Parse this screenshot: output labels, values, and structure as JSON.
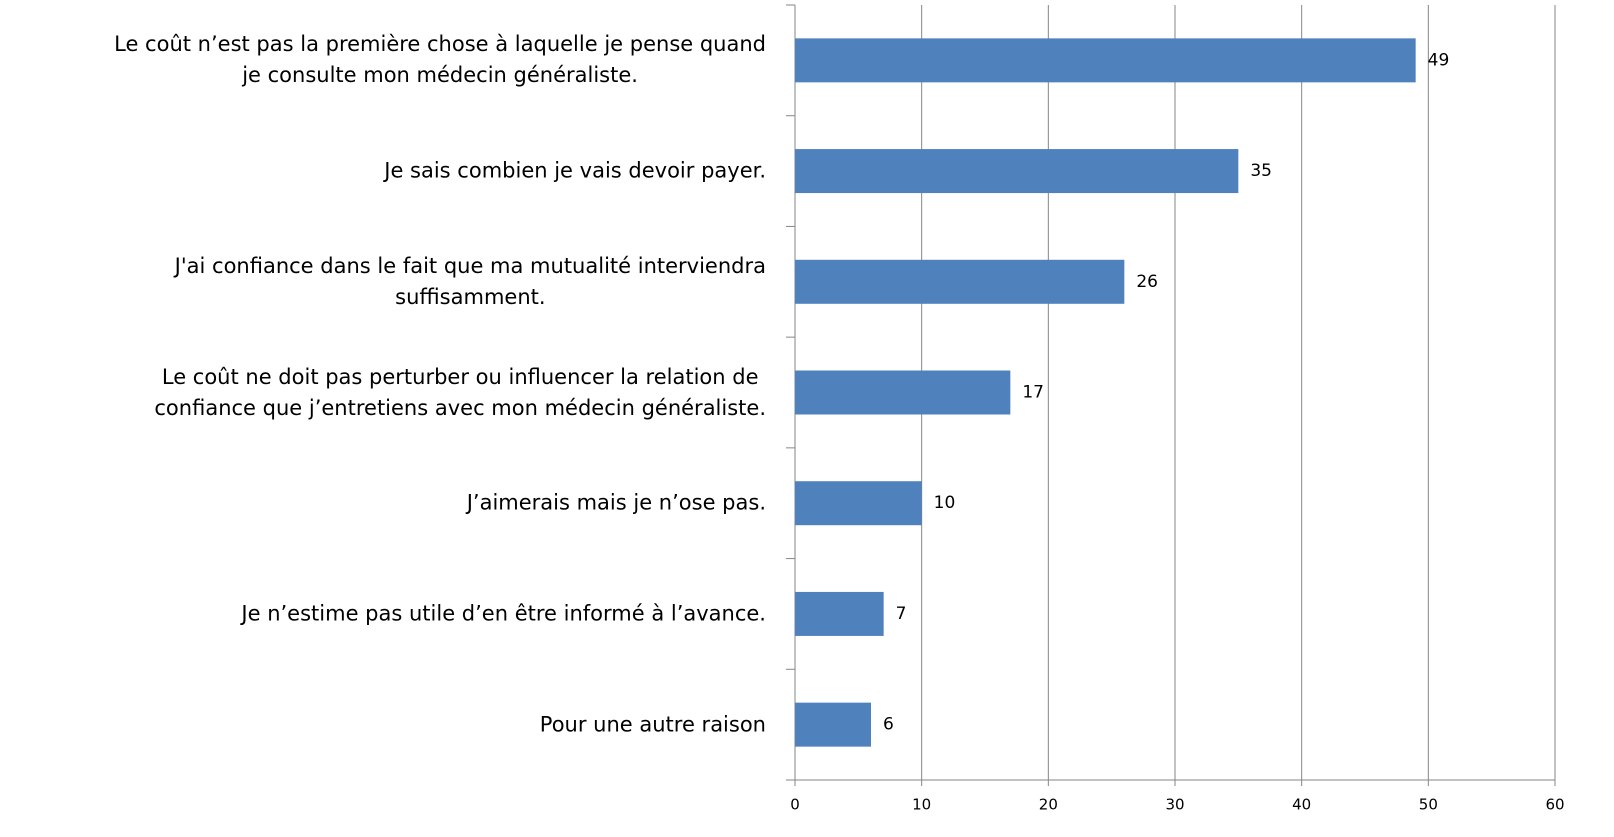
{
  "chart_data": {
    "type": "barh",
    "categories": [
      "Le coût n’est pas la première chose à laquelle je pense quand\nje consulte mon médecin généraliste.",
      "Je sais combien je vais devoir payer.",
      "J'ai confiance dans le fait que ma mutualité interviendra\nsuffisamment.",
      "Le coût ne doit pas perturber ou influencer la relation de\nconfiance que j’entretiens avec mon médecin généraliste.",
      "J’aimerais mais je n’ose pas.",
      "Je n’estime pas utile d’en être informé à l’avance.",
      "Pour une autre raison"
    ],
    "values": [
      49,
      35,
      26,
      17,
      10,
      7,
      6
    ],
    "color": "#4f81bd",
    "xlim": [
      0,
      60
    ],
    "xticks": [
      0,
      10,
      20,
      30,
      40,
      50,
      60
    ],
    "grid": true
  }
}
